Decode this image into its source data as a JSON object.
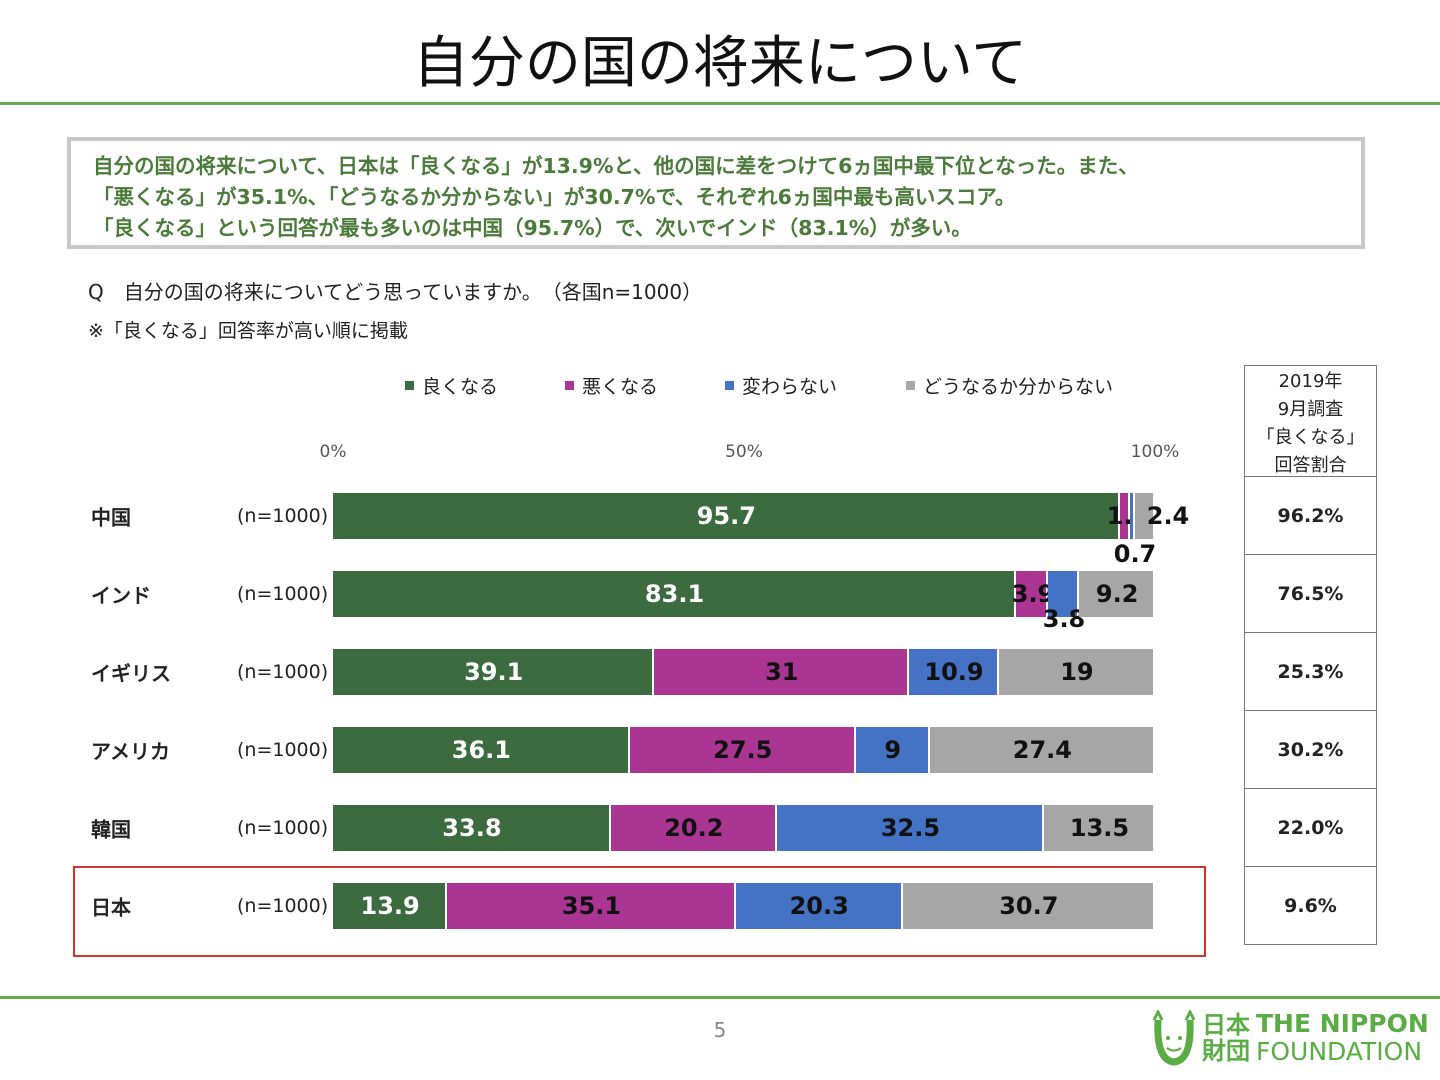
{
  "title": "自分の国の将来について",
  "summary": [
    "自分の国の将来について、日本は「良くなる」が13.9%と、他の国に差をつけて6ヵ国中最下位となった。また、",
    "「悪くなる」が35.1%、「どうなるか分からない」が30.7%で、それぞれ6ヵ国中最も高いスコア。",
    "「良くなる」という回答が最も多いのは中国（95.7%）で、次いでインド（83.1%）が多い。"
  ],
  "question": "Q　自分の国の将来についてどう思っていますか。　（各国n=1000）",
  "note": "※「良くなる」回答率が高い順に掲載",
  "chart_data": {
    "type": "bar",
    "orientation": "horizontal-stacked-100",
    "xlim": [
      0,
      100
    ],
    "ticks": [
      "0%",
      "50%",
      "100%"
    ],
    "legend": [
      "良くなる",
      "悪くなる",
      "変わらない",
      "どうなるか分からない"
    ],
    "colors": [
      "#3d6b40",
      "#ab3592",
      "#4472c4",
      "#a6a6a6"
    ],
    "categories": [
      "中国",
      "インド",
      "イギリス",
      "アメリカ",
      "韓国",
      "日本"
    ],
    "n_labels": [
      "(n=1000)",
      "(n=1000)",
      "(n=1000)",
      "(n=1000)",
      "(n=1000)",
      "(n=1000)"
    ],
    "series": [
      {
        "name": "良くなる",
        "values": [
          95.7,
          83.1,
          39.1,
          36.1,
          33.8,
          13.9
        ]
      },
      {
        "name": "悪くなる",
        "values": [
          1.2,
          3.9,
          31.0,
          27.5,
          20.2,
          35.1
        ]
      },
      {
        "name": "変わらない",
        "values": [
          0.7,
          3.8,
          10.9,
          9.0,
          32.5,
          20.3
        ]
      },
      {
        "name": "どうなるか分からない",
        "values": [
          2.4,
          9.2,
          19.0,
          27.4,
          13.5,
          30.7
        ]
      }
    ],
    "highlight": "日本"
  },
  "table": {
    "header": [
      "2019年",
      "9月調査",
      "「良くなる」",
      "回答割合"
    ],
    "values": [
      "96.2%",
      "76.5%",
      "25.3%",
      "30.2%",
      "22.0%",
      "9.6%"
    ]
  },
  "page_number": "5",
  "logo": {
    "jp1": "日本",
    "jp2": "財団",
    "en1": "THE NIPPON",
    "en2": "FOUNDATION"
  }
}
